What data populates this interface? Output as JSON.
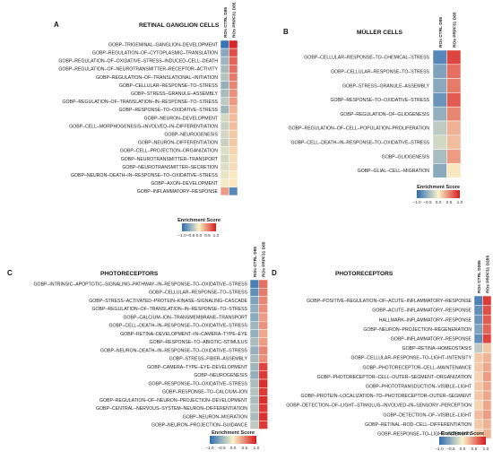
{
  "colors": {
    "low": "#2c6db5",
    "mid": "#fbf3c8",
    "high": "#d7191c",
    "grid_line": "#ffffff"
  },
  "chart_data": [
    {
      "type": "heatmap",
      "letter": "A",
      "title": "RETINAL GANGLION CELLS",
      "columns": [
        "ROs CTRL D85",
        "ROs PRPF31 D85"
      ],
      "rows": [
        "GOBP–TRIGEMINAL–GANGLION–DEVELOPMENT",
        "GOBP–REGULATION–OF–CYTOPLASMIC–TRANSLATION",
        "GOBP–REGULATION–OF–OXIDATIVE–STRESS–INDUCED–CELL–DEATH",
        "GOBP–REGULATION–OF–NEUROTRANSMITTER–RECEPTOR–ACTIVITY",
        "GOBP–REGULATION–OF–TRANSLATIONAL–INITIATION",
        "GOBP–CELLULAR–RESPONSE–TO–STRESS",
        "GOBP–STRESS–GRANULE–ASSEMBLY",
        "GOBP–REGULATION–OF–TRANSLATION–IN–RESPONSE–TO–STRESS",
        "GOBP–RESPONSE–TO–OXIDATIVE–STRESS",
        "GOBP–NEURON–DEVELOPMENT",
        "GOBP–CELL–MORPHOGENESIS–INVOLVED–IN–DIFFERENTIATION",
        "GOBP–NEUROGENESIS",
        "GOBP–NEURON–DIFFERENTIATION",
        "GOBP–CELL–PROJECTION–ORGANIZATION",
        "GOBP–NEUROTRANSMITTER–TRANSPORT",
        "GOBP–NEUROTRANSMITTER–SECRETION",
        "GOBP–NEURON–DEATH–IN–RESPONSE–TO–OXIDATIVE–STRESS",
        "GOBP–AXON–DEVELOPMENT",
        "GOBP–INFLAMMATORY–RESPONSE"
      ],
      "values": [
        [
          -0.95,
          0.95
        ],
        [
          -0.55,
          0.75
        ],
        [
          -0.45,
          0.65
        ],
        [
          -0.4,
          0.6
        ],
        [
          -0.35,
          0.55
        ],
        [
          -0.5,
          0.5
        ],
        [
          -0.4,
          0.45
        ],
        [
          -0.3,
          0.4
        ],
        [
          -0.45,
          0.3
        ],
        [
          -0.2,
          0.25
        ],
        [
          -0.25,
          0.25
        ],
        [
          -0.2,
          0.2
        ],
        [
          -0.25,
          0.2
        ],
        [
          -0.15,
          0.15
        ],
        [
          -0.2,
          0.1
        ],
        [
          -0.15,
          0.1
        ],
        [
          -0.1,
          0.05
        ],
        [
          -0.05,
          0.05
        ],
        [
          0.4,
          -0.8
        ]
      ],
      "legend": {
        "title": "Enrichment Score",
        "ticks": [
          "−1.0",
          "−0.5",
          "0.0",
          "0.5",
          "1.0"
        ]
      }
    },
    {
      "type": "heatmap",
      "letter": "B",
      "title": "MÜLLER CELLS",
      "columns": [
        "ROs CTRL D85",
        "ROs PRPF31 D85"
      ],
      "rows": [
        "GOBP–CELLULAR–RESPONSE–TO–CHEMICAL–STRESS",
        "GOBP–CELLULAR–RESPONSE–TO–STRESS",
        "GOBP–STRESS–GRANULE–ASSEMBLY",
        "GOBP–RESPONSE–TO–OXIDATIVE–STRESS",
        "GOBP–REGULATION–OF–GLIOGENESIS",
        "GOBP–REGULATION–OF–CELL–POPULATION–PROLIFERATION",
        "GOBP–CELL–DEATH–IN–RESPONSE–TO–OXIDATIVE–STRESS",
        "GOBP–GLIOGENESIS",
        "GOBP–GLIAL–CELL–MIGRATION"
      ],
      "values": [
        [
          -0.8,
          0.8
        ],
        [
          -0.6,
          0.6
        ],
        [
          -0.55,
          0.55
        ],
        [
          -0.7,
          0.7
        ],
        [
          -0.5,
          0.5
        ],
        [
          -0.3,
          0.3
        ],
        [
          -0.2,
          0.25
        ],
        [
          -0.4,
          0.4
        ],
        [
          -0.55,
          0.05
        ]
      ],
      "legend": {
        "title": "Enrichment Score",
        "ticks": [
          "−1.0",
          "−0.5",
          "0.0",
          "0.5",
          "1.0"
        ]
      }
    },
    {
      "type": "heatmap",
      "letter": "C",
      "title": "PHOTORECEPTORS",
      "columns": [
        "ROs CTRL D85",
        "ROs PRPF31 D85"
      ],
      "rows": [
        "GOBP–INTRINSIC–APOPTOTIC–SIGNALING–PATHWAY–IN–RESPONSE–TO–OXIDATIVE–STRESS",
        "GOBP–CELLULAR–RESPONSE–TO–STRESS",
        "GOBP–STRESS–ACTIVATED–PROTEIN–KINASE–SIGNALING–CASCADE",
        "GOBP–REGULATION–OF–TRANSLATION–IN–RESPONSE–TO–STRESS",
        "GOBP–CALCIUM–ION–TRANSMEMBRANE–TRANSPORT",
        "GOBP–CELL–DEATH–IN–RESPONSE–TO–OXIDATIVE–STRESS",
        "GOBP–RETINA–DEVELOPMENT–IN–CAMERA–TYPE–EYE",
        "GOBP–RESPONSE–TO–ABIOTIC–STIMULUS",
        "GOBP–NEURON–DEATH–IN–RESPONSE–TO–OXIDATIVE–STRESS",
        "GOBP–STRESS–FIBER–ASSEMBLY",
        "GOBP–CAMERA–TYPE–EYE–DEVELOPMENT",
        "GOBP–NEUROGENESIS",
        "GOBP–RESPONSE–TO–OXIDATIVE–STRESS",
        "GOBP–RESPONSE–TO–CALCIUM–ION",
        "GOBP–REGULATION–OF–NEURON–PROJECTION–DEVELOPMENT",
        "GOBP–CENTRAL–NERVOUS–SYSTEM–NEURON–DIFFERENTIATION",
        "GOBP–NEURON–MIGRATION",
        "GOBP–NEURON–PROJECTION–GUIDANCE"
      ],
      "values": [
        [
          -0.85,
          0.6
        ],
        [
          -0.75,
          0.55
        ],
        [
          -0.6,
          0.5
        ],
        [
          -0.5,
          0.45
        ],
        [
          -0.55,
          0.4
        ],
        [
          -0.45,
          0.45
        ],
        [
          -0.5,
          0.35
        ],
        [
          -0.4,
          0.4
        ],
        [
          -0.5,
          0.5
        ],
        [
          -0.4,
          0.45
        ],
        [
          -0.45,
          0.8
        ],
        [
          -0.5,
          0.85
        ],
        [
          -0.4,
          0.9
        ],
        [
          -0.35,
          0.85
        ],
        [
          -0.4,
          0.9
        ],
        [
          -0.35,
          0.85
        ],
        [
          -0.4,
          0.9
        ],
        [
          -0.3,
          0.85
        ]
      ],
      "legend": {
        "title": "Enrichment Score",
        "ticks": [
          "−1.0",
          "−0.5",
          "0.0",
          "0.5",
          "1.0"
        ]
      }
    },
    {
      "type": "heatmap",
      "letter": "D",
      "title": "PHOTORECEPTORS",
      "columns": [
        "ROs CTRL D285",
        "ROs PRPF31 D285"
      ],
      "rows": [
        "GOBP–POSITIVE–REGULATION–OF–ACUTE–INFLAMMATORY–RESPONSE",
        "GOBP–ACUTE–INFLAMMATORY–RESPONSE",
        "HALLMARK–INFLAMMATORY–RESPONSE",
        "GOBP–NEURON–PROJECTION–REGENERATION",
        "GOBP–INFLAMMATORY–RESPONSE",
        "GOBP–RETINA–HOMEOSTASIS",
        "GOBP–CELLULAR–RESPONSE–TO–LIGHT–INTENSITY",
        "GOBP–PHOTORECEPTOR–CELL–MAINTENANCE",
        "GOBP–PHOTORECEPTOR–CELL–OUTER–SEGMENT–ORGANIZATION",
        "GOBP–PHOTOTRANSDUCTION–VISIBLE–LIGHT",
        "GOBP–PROTEIN–LOCALIZATION–TO–PHOTORECEPTOR–OUTER–SEGMENT",
        "GOBP–DETECTION–OF–LIGHT–STIMULUS–INVOLVED–IN–SENSORY–PERCEPTION",
        "GOBP–DETECTION–OF–VISIBLE–LIGHT",
        "GOBP–RETINAL–ROD–CELL–DIFFERENTIATION",
        "GOBP–RESPONSE–TO–LIGHT–INTENSITY"
      ],
      "values": [
        [
          -0.85,
          0.85
        ],
        [
          -0.75,
          0.75
        ],
        [
          -0.7,
          0.7
        ],
        [
          -0.6,
          0.65
        ],
        [
          -0.75,
          0.8
        ],
        [
          -0.3,
          0.2
        ],
        [
          0.2,
          0.3
        ],
        [
          0.2,
          0.35
        ],
        [
          0.15,
          0.4
        ],
        [
          0.2,
          0.35
        ],
        [
          0.2,
          0.35
        ],
        [
          0.15,
          0.35
        ],
        [
          0.25,
          0.4
        ],
        [
          0.2,
          0.3
        ],
        [
          0.15,
          0.3
        ]
      ],
      "legend": {
        "title": "Enrichment Score",
        "ticks": [
          "−1.0",
          "−0.5",
          "0.0",
          "0.5",
          "1.0"
        ]
      }
    }
  ]
}
